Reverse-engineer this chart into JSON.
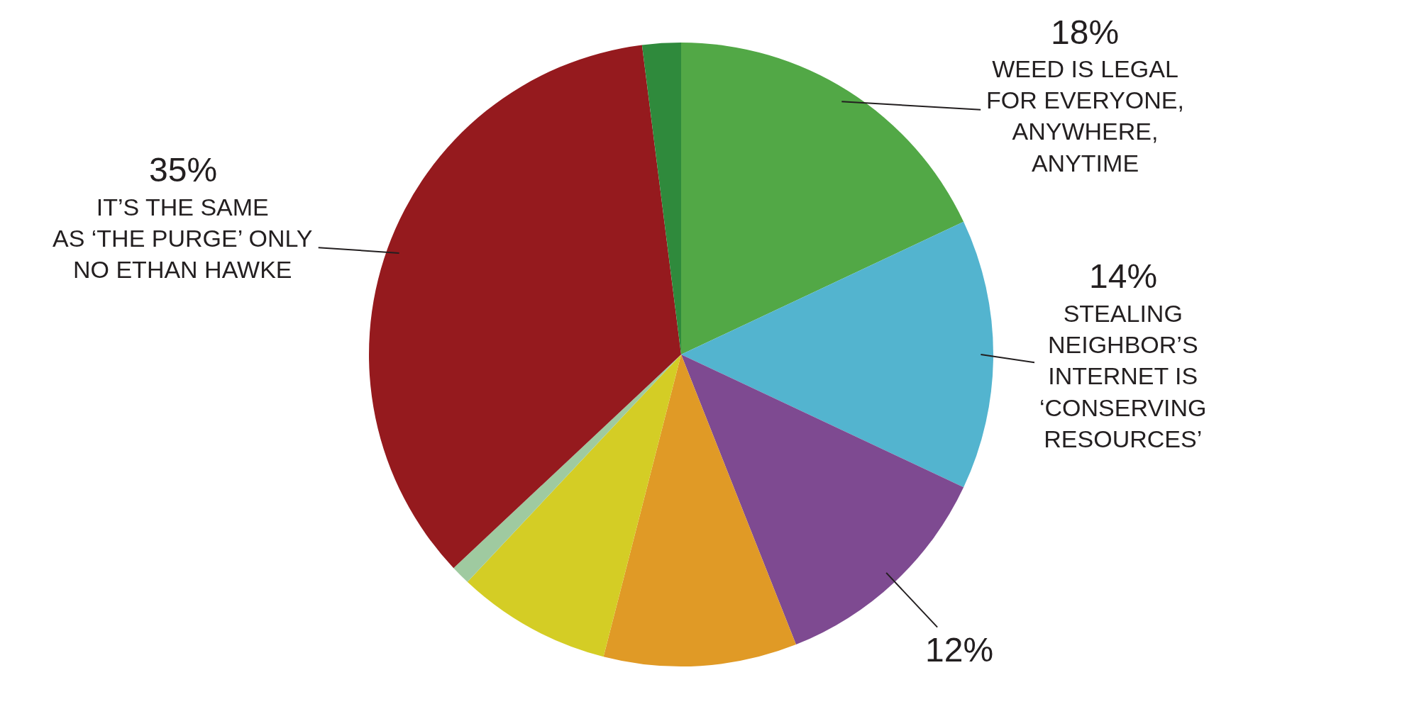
{
  "chart_data": {
    "type": "pie",
    "categories": [
      "WEED IS LEGAL\nFOR EVERYONE,\nANYWHERE,\nANYTIME",
      "STEALING\nNEIGHBOR’S\nINTERNET IS\n‘CONSERVING\nRESOURCES’",
      null,
      null,
      null,
      null,
      "IT’S THE SAME\nAS ‘THE PURGE’ ONLY\nNO ETHAN HAWKE",
      null
    ],
    "values": [
      18,
      14,
      12,
      10,
      8,
      1,
      35,
      2
    ],
    "colors": [
      "#52a846",
      "#53b4cf",
      "#7e4a91",
      "#e09a26",
      "#d4cd25",
      "#9fcaa0",
      "#951a1e",
      "#2f8a3c"
    ],
    "value_labels": [
      "18%",
      "14%",
      "12%",
      null,
      null,
      null,
      "35%",
      null
    ]
  }
}
